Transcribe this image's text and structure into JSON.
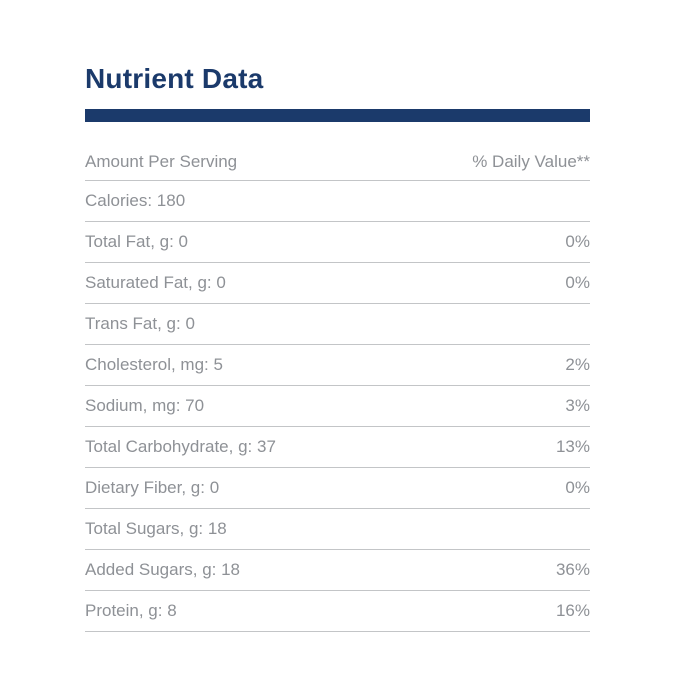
{
  "colors": {
    "accent_navy": "#1b3a6b",
    "text_gray": "#8e9196",
    "divider_gray": "#c3c5c7",
    "background": "#ffffff"
  },
  "header": {
    "title": "Nutrient Data"
  },
  "table": {
    "columns": {
      "label": "Amount Per Serving",
      "value": "% Daily Value**"
    },
    "rows": [
      {
        "label": "Calories: 180",
        "daily_value": ""
      },
      {
        "label": "Total Fat, g: 0",
        "daily_value": "0%"
      },
      {
        "label": "Saturated Fat, g: 0",
        "daily_value": "0%"
      },
      {
        "label": "Trans Fat, g: 0",
        "daily_value": ""
      },
      {
        "label": "Cholesterol, mg: 5",
        "daily_value": "2%"
      },
      {
        "label": "Sodium, mg: 70",
        "daily_value": "3%"
      },
      {
        "label": "Total Carbohydrate, g: 37",
        "daily_value": "13%"
      },
      {
        "label": "Dietary Fiber, g: 0",
        "daily_value": "0%"
      },
      {
        "label": "Total Sugars, g: 18",
        "daily_value": ""
      },
      {
        "label": "Added Sugars, g: 18",
        "daily_value": "36%"
      },
      {
        "label": "Protein, g: 8",
        "daily_value": "16%"
      }
    ]
  }
}
